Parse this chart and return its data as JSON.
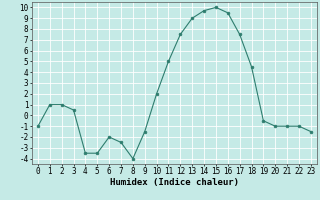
{
  "x": [
    0,
    1,
    2,
    3,
    4,
    5,
    6,
    7,
    8,
    9,
    10,
    11,
    12,
    13,
    14,
    15,
    16,
    17,
    18,
    19,
    20,
    21,
    22,
    23
  ],
  "y": [
    -1,
    1,
    1,
    0.5,
    -3.5,
    -3.5,
    -2,
    -2.5,
    -4,
    -1.5,
    2,
    5,
    7.5,
    9,
    9.7,
    10,
    9.5,
    7.5,
    4.5,
    -0.5,
    -1,
    -1,
    -1,
    -1.5
  ],
  "xlabel": "Humidex (Indice chaleur)",
  "xlim": [
    -0.5,
    23.5
  ],
  "ylim": [
    -4.5,
    10.5
  ],
  "yticks": [
    -4,
    -3,
    -2,
    -1,
    0,
    1,
    2,
    3,
    4,
    5,
    6,
    7,
    8,
    9,
    10
  ],
  "xticks": [
    0,
    1,
    2,
    3,
    4,
    5,
    6,
    7,
    8,
    9,
    10,
    11,
    12,
    13,
    14,
    15,
    16,
    17,
    18,
    19,
    20,
    21,
    22,
    23
  ],
  "line_color": "#2e7d6e",
  "marker_color": "#2e7d6e",
  "bg_color": "#c5eae6",
  "grid_color": "#ffffff",
  "label_fontsize": 6.5,
  "tick_fontsize": 5.5
}
